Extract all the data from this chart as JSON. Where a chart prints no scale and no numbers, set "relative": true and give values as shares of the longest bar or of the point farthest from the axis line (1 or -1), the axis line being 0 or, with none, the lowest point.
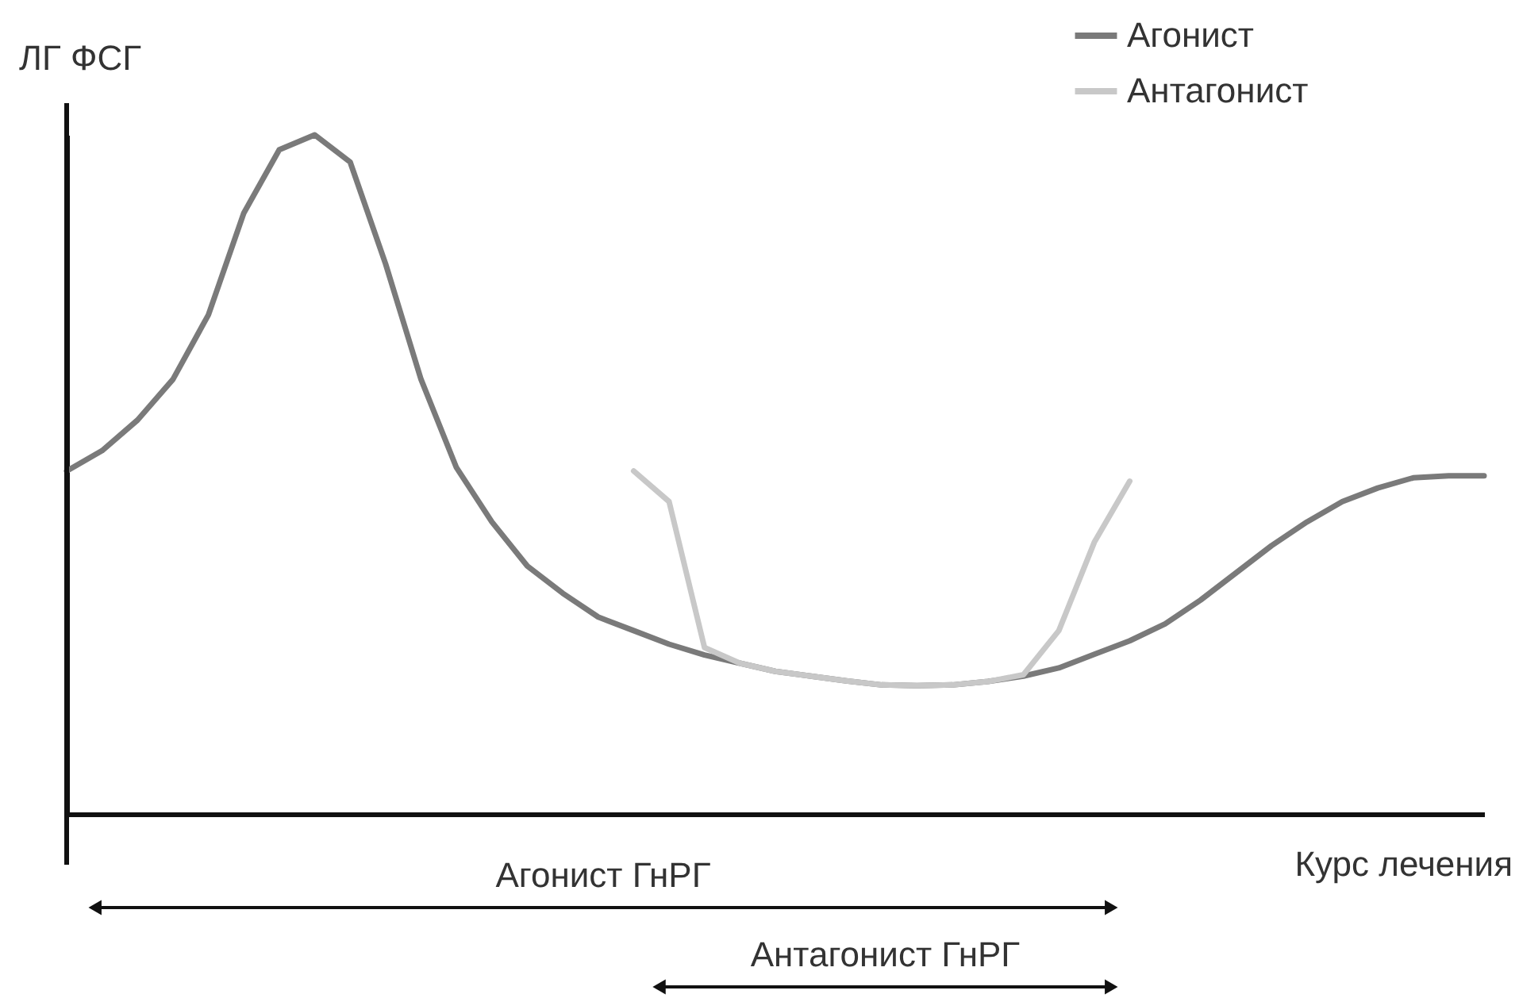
{
  "chart_data": {
    "type": "line",
    "relative": true,
    "xlabel": "Курс лечения",
    "ylabel": "ЛГ ФСГ",
    "tick_labels": false,
    "grid": false,
    "legend": "top right",
    "marker": "none",
    "line_style": "solid",
    "categories": [
      null,
      null,
      null,
      null,
      null,
      null,
      null,
      null,
      null,
      null,
      null,
      null,
      null,
      null,
      null,
      null,
      null,
      null,
      null,
      null,
      null,
      null,
      null,
      null,
      null,
      null,
      null,
      null,
      null,
      null,
      null,
      null,
      null,
      null,
      null,
      null,
      null,
      null,
      null,
      null,
      null
    ],
    "series": [
      {
        "name": "Агонист",
        "color": "#7a7a7a",
        "values": [
          0.505,
          0.535,
          0.58,
          0.64,
          0.735,
          0.885,
          0.978,
          1.0,
          0.96,
          0.81,
          0.64,
          0.51,
          0.43,
          0.365,
          0.325,
          0.29,
          0.27,
          0.25,
          0.234,
          0.222,
          0.21,
          0.203,
          0.196,
          0.19,
          0.189,
          0.19,
          0.195,
          0.203,
          0.215,
          0.235,
          0.255,
          0.28,
          0.315,
          0.355,
          0.395,
          0.43,
          0.46,
          0.48,
          0.495,
          0.498,
          0.498
        ]
      },
      {
        "name": "Антагонист",
        "color": "#c8c8c8",
        "values": [
          null,
          null,
          null,
          null,
          null,
          null,
          null,
          null,
          null,
          null,
          null,
          null,
          null,
          null,
          null,
          null,
          0.505,
          0.46,
          0.245,
          0.222,
          0.21,
          0.203,
          0.196,
          0.19,
          0.189,
          0.19,
          0.195,
          0.205,
          0.27,
          0.4,
          0.49,
          null,
          null,
          null,
          null,
          null,
          null,
          null,
          null,
          null,
          null
        ]
      }
    ],
    "annotations": [
      "Агонист ГнРГ",
      "Антагонист ГнРГ"
    ]
  }
}
